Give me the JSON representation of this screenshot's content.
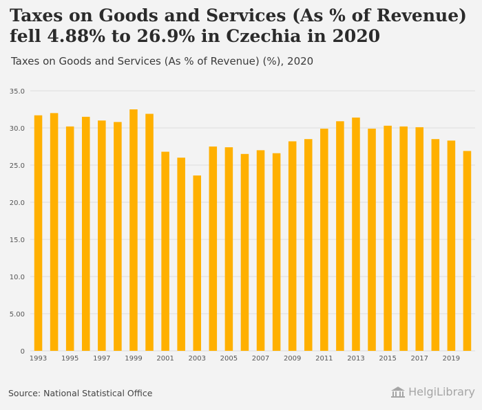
{
  "title": "Taxes on Goods and Services (As % of Revenue) fell 4.88% to 26.9% in Czechia in 2020",
  "subtitle": "Taxes on Goods and Services (As % of Revenue) (%), 2020",
  "source": "Source: National Statistical Office",
  "brand": "HelgiLibrary",
  "colors": {
    "bar": "#ffb000",
    "grid": "#dddddd",
    "axis_text": "#555555"
  },
  "chart_data": {
    "type": "bar",
    "categories": [
      "1993",
      "1994",
      "1995",
      "1996",
      "1997",
      "1998",
      "1999",
      "2000",
      "2001",
      "2002",
      "2003",
      "2004",
      "2005",
      "2006",
      "2007",
      "2008",
      "2009",
      "2010",
      "2011",
      "2012",
      "2013",
      "2014",
      "2015",
      "2016",
      "2017",
      "2018",
      "2019",
      "2020"
    ],
    "values": [
      31.7,
      32.0,
      30.2,
      31.5,
      31.0,
      30.8,
      32.5,
      31.9,
      26.8,
      26.0,
      23.6,
      27.5,
      27.4,
      26.5,
      27.0,
      26.6,
      28.2,
      28.5,
      29.9,
      30.9,
      31.4,
      29.9,
      30.3,
      30.2,
      30.1,
      28.5,
      28.3,
      26.9
    ],
    "x_tick_labels": [
      "1993",
      "1995",
      "1997",
      "1999",
      "2001",
      "2003",
      "2005",
      "2007",
      "2009",
      "2011",
      "2013",
      "2015",
      "2017",
      "2019"
    ],
    "y_ticks": [
      0,
      5,
      10,
      15,
      20,
      25,
      30,
      35
    ],
    "y_tick_labels": [
      "0",
      "5.00",
      "10.0",
      "15.0",
      "20.0",
      "25.0",
      "30.0",
      "35.0"
    ],
    "ylim": [
      0,
      35
    ],
    "xlabel": "",
    "ylabel": "",
    "grid": true
  }
}
